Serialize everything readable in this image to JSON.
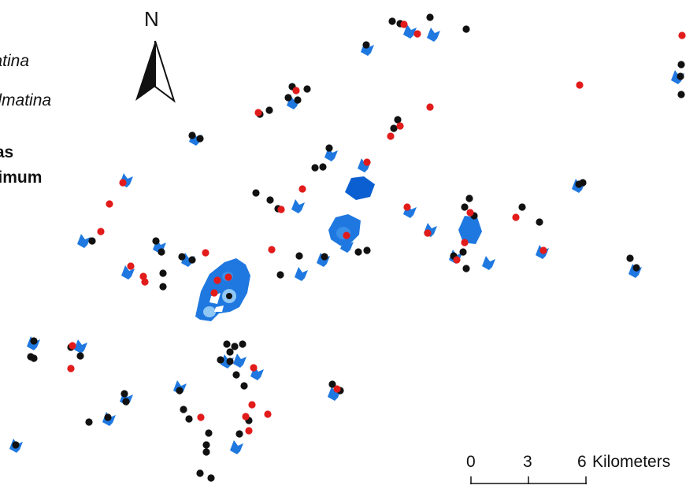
{
  "legend": {
    "entries": [
      {
        "text": "matina",
        "style": "italic"
      },
      {
        "text": "dalmatina",
        "style": "italic"
      },
      {
        "text": "reas",
        "style": "bold"
      },
      {
        "text": "aximum",
        "style": "bold"
      }
    ]
  },
  "north_arrow": {
    "label": "N"
  },
  "scale_bar": {
    "ticks": [
      "0",
      "3",
      "6"
    ],
    "unit": "Kilometers"
  },
  "colors": {
    "site_black": "#111111",
    "site_red": "#e21b1b",
    "area_blue": "#1f78e0",
    "area_blue_dark": "#0b5fd0",
    "area_blue_mid": "#3a8fe8",
    "area_blue_light": "#8fc7f5"
  }
}
